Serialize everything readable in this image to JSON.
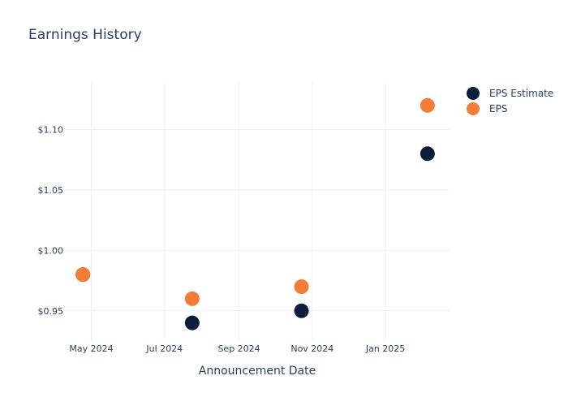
{
  "chart_data": {
    "type": "scatter",
    "title": "Earnings History",
    "xlabel": "Announcement Date",
    "ylabel": "",
    "x_ticks": [
      "May 2024",
      "Jul 2024",
      "Sep 2024",
      "Nov 2024",
      "Jan 2025"
    ],
    "y_ticks": [
      "$0.95",
      "$1.00",
      "$1.05",
      "$1.10"
    ],
    "ylim": [
      0.925,
      1.14
    ],
    "xlim": [
      "2024-04-09",
      "2025-02-24"
    ],
    "grid": true,
    "legend_position": "top-right",
    "series": [
      {
        "name": "EPS Estimate",
        "color": "#0b1d3a",
        "points": [
          {
            "x": "2024-04-24",
            "y": 0.98
          },
          {
            "x": "2024-07-24",
            "y": 0.94
          },
          {
            "x": "2024-10-23",
            "y": 0.95
          },
          {
            "x": "2025-02-05",
            "y": 1.08
          }
        ]
      },
      {
        "name": "EPS",
        "color": "#f47c36",
        "points": [
          {
            "x": "2024-04-24",
            "y": 0.98
          },
          {
            "x": "2024-07-24",
            "y": 0.96
          },
          {
            "x": "2024-10-23",
            "y": 0.97
          },
          {
            "x": "2025-02-05",
            "y": 1.12
          }
        ]
      }
    ]
  }
}
